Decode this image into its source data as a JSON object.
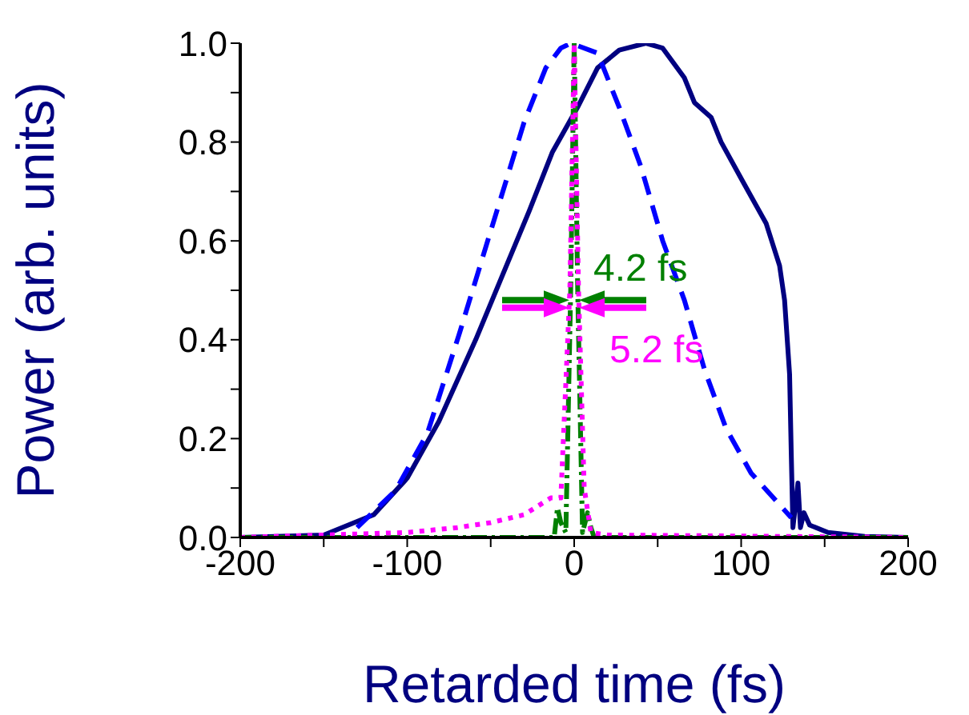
{
  "chart_data": {
    "type": "line",
    "xlabel": "Retarded time (fs)",
    "ylabel": "Power (arb. units)",
    "xlim": [
      -200,
      200
    ],
    "xticks": [
      -200,
      {
        "value": -150,
        "label": null
      },
      -100,
      {
        "value": -50,
        "label": null
      },
      0,
      {
        "value": 50,
        "label": null
      },
      100,
      {
        "value": 150,
        "label": null
      },
      200
    ],
    "ylim": [
      0,
      1
    ],
    "yticks": [
      {
        "value": 0,
        "label": "0.0"
      },
      {
        "value": 0.1,
        "label": null
      },
      {
        "value": 0.2,
        "label": "0.2"
      },
      {
        "value": 0.3,
        "label": null
      },
      {
        "value": 0.4,
        "label": "0.4"
      },
      {
        "value": 0.5,
        "label": null
      },
      {
        "value": 0.6,
        "label": "0.6"
      },
      {
        "value": 0.7,
        "label": null
      },
      {
        "value": 0.8,
        "label": "0.8"
      },
      {
        "value": 0.9,
        "label": null
      },
      {
        "value": 1,
        "label": "1.0"
      }
    ],
    "marker": "none",
    "series": [
      {
        "color": "#000080",
        "line_style": "solid",
        "x": [
          -200,
          -150,
          -120,
          -100,
          -81,
          -59,
          -43,
          -27,
          -13,
          2,
          14,
          27,
          43,
          53,
          66,
          72,
          82,
          88,
          101,
          115,
          123,
          126,
          129,
          130,
          131,
          134,
          135.5,
          137.6,
          141,
          152,
          174,
          200
        ],
        "values": [
          0,
          0.005,
          0.046,
          0.12,
          0.235,
          0.4,
          0.53,
          0.66,
          0.78,
          0.87,
          0.95,
          0.986,
          1,
          0.99,
          0.93,
          0.88,
          0.85,
          0.8,
          0.72,
          0.635,
          0.55,
          0.48,
          0.33,
          0.17,
          0.02,
          0.11,
          0.02,
          0.05,
          0.025,
          0.01,
          0.002,
          0
        ]
      },
      {
        "color": "#0000ff",
        "line_style": "dashed",
        "x": [
          -130,
          -107,
          -88,
          -69,
          -50,
          -30,
          -17,
          -8,
          -2,
          14,
          27,
          40,
          53,
          66,
          78,
          91,
          106,
          130
        ],
        "values": [
          0.02,
          0.095,
          0.21,
          0.41,
          0.62,
          0.84,
          0.95,
          0.99,
          1,
          0.98,
          0.87,
          0.75,
          0.6,
          0.48,
          0.34,
          0.22,
          0.13,
          0.04
        ]
      },
      {
        "color": "#008000",
        "line_style": "dashdot",
        "x": [
          -200,
          -12,
          -10,
          -8,
          -5,
          -2.1,
          0,
          2.1,
          5,
          8,
          10,
          12,
          200
        ],
        "values": [
          0,
          0,
          0.06,
          0.03,
          0.01,
          0.5,
          1,
          0.5,
          0.01,
          0.05,
          0.02,
          0,
          0
        ]
      },
      {
        "color": "#ff00ff",
        "line_style": "dotted",
        "x": [
          -200,
          -100,
          -70,
          -50,
          -30,
          -14,
          -8,
          -2.6,
          0,
          2.6,
          6,
          10,
          20,
          200
        ],
        "values": [
          0,
          0.01,
          0.02,
          0.03,
          0.046,
          0.08,
          0.08,
          0.5,
          1,
          0.5,
          0.1,
          0.01,
          0.005,
          0
        ]
      }
    ],
    "annotations": [
      {
        "text": "4.2 fs",
        "x": 0,
        "y": 0.48
      },
      {
        "text": "5.2 fs",
        "x": 0,
        "y": 0.465
      }
    ]
  }
}
